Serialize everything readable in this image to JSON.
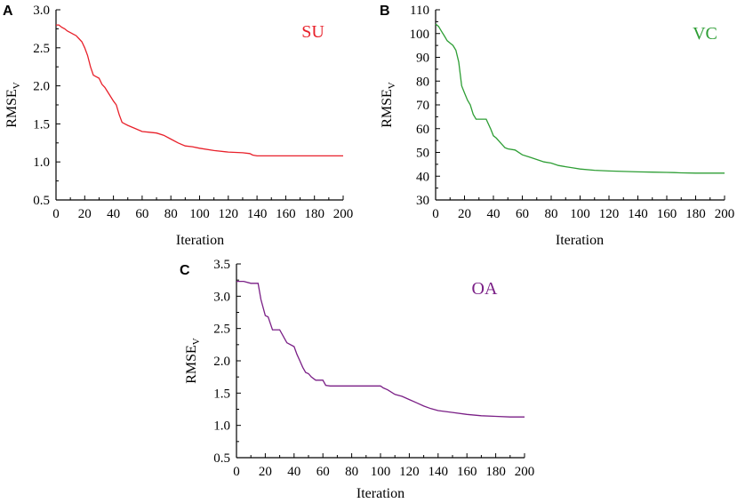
{
  "chart_data": [
    {
      "type": "line",
      "panel": "A",
      "series_label": "SU",
      "color": "#e8202a",
      "xlabel": "Iteration",
      "ylabel_main": "RMSE",
      "ylabel_sub": "V",
      "xlim": [
        0,
        200
      ],
      "ylim": [
        0.5,
        3.0
      ],
      "xticks": [
        0,
        20,
        40,
        60,
        80,
        100,
        120,
        140,
        160,
        180,
        200
      ],
      "yticks": [
        0.5,
        1.0,
        1.5,
        2.0,
        2.5,
        3.0
      ],
      "ytick_labels": [
        "0.5",
        "1.0",
        "1.5",
        "2.0",
        "2.5",
        "3.0"
      ],
      "x": [
        0,
        2,
        4,
        6,
        8,
        10,
        12,
        14,
        16,
        18,
        20,
        22,
        24,
        26,
        28,
        30,
        32,
        34,
        36,
        38,
        40,
        42,
        44,
        46,
        48,
        50,
        55,
        60,
        65,
        70,
        75,
        80,
        85,
        90,
        95,
        100,
        110,
        120,
        130,
        135,
        137,
        140,
        160,
        180,
        200
      ],
      "y": [
        2.8,
        2.8,
        2.77,
        2.75,
        2.72,
        2.7,
        2.68,
        2.66,
        2.62,
        2.58,
        2.5,
        2.4,
        2.25,
        2.14,
        2.12,
        2.1,
        2.02,
        1.98,
        1.92,
        1.86,
        1.8,
        1.75,
        1.62,
        1.52,
        1.5,
        1.48,
        1.44,
        1.4,
        1.39,
        1.38,
        1.35,
        1.3,
        1.25,
        1.21,
        1.2,
        1.18,
        1.15,
        1.13,
        1.12,
        1.11,
        1.09,
        1.08,
        1.08,
        1.08,
        1.08
      ]
    },
    {
      "type": "line",
      "panel": "B",
      "series_label": "VC",
      "color": "#2e9e35",
      "xlabel": "Iteration",
      "ylabel_main": "RMSE",
      "ylabel_sub": "V",
      "xlim": [
        0,
        200
      ],
      "ylim": [
        30,
        110
      ],
      "xticks": [
        0,
        20,
        40,
        60,
        80,
        100,
        120,
        140,
        160,
        180,
        200
      ],
      "yticks": [
        30,
        40,
        50,
        60,
        70,
        80,
        90,
        100,
        110
      ],
      "ytick_labels": [
        "30",
        "40",
        "50",
        "60",
        "70",
        "80",
        "90",
        "100",
        "110"
      ],
      "x": [
        0,
        2,
        4,
        6,
        8,
        10,
        12,
        14,
        16,
        18,
        20,
        22,
        24,
        26,
        28,
        30,
        35,
        38,
        40,
        42,
        45,
        48,
        50,
        55,
        60,
        65,
        70,
        75,
        80,
        85,
        90,
        95,
        100,
        110,
        120,
        130,
        140,
        150,
        160,
        165,
        170,
        180,
        190,
        200
      ],
      "y": [
        104,
        103,
        101,
        99,
        97,
        96,
        95,
        93,
        88,
        78,
        75,
        72,
        70,
        66,
        64,
        64,
        64,
        60,
        57,
        56,
        54,
        52,
        51.5,
        51,
        49,
        48,
        47,
        46,
        45.5,
        44.5,
        44,
        43.5,
        43,
        42.5,
        42.2,
        42,
        41.8,
        41.7,
        41.6,
        41.5,
        41.4,
        41.3,
        41.3,
        41.3
      ]
    },
    {
      "type": "line",
      "panel": "C",
      "series_label": "OA",
      "color": "#7a1f86",
      "xlabel": "Iteration",
      "ylabel_main": "RMSE",
      "ylabel_sub": "V",
      "xlim": [
        0,
        200
      ],
      "ylim": [
        0.5,
        3.5
      ],
      "xticks": [
        0,
        20,
        40,
        60,
        80,
        100,
        120,
        140,
        160,
        180,
        200
      ],
      "yticks": [
        0.5,
        1.0,
        1.5,
        2.0,
        2.5,
        3.0,
        3.5
      ],
      "ytick_labels": [
        "0.5",
        "1.0",
        "1.5",
        "2.0",
        "2.5",
        "3.0",
        "3.5"
      ],
      "x": [
        0,
        5,
        10,
        15,
        17,
        20,
        22,
        25,
        30,
        35,
        40,
        42,
        44,
        46,
        48,
        50,
        52,
        55,
        58,
        60,
        62,
        65,
        70,
        80,
        90,
        100,
        102,
        105,
        110,
        115,
        120,
        125,
        130,
        135,
        140,
        150,
        160,
        170,
        180,
        190,
        200
      ],
      "y": [
        3.23,
        3.23,
        3.2,
        3.2,
        2.95,
        2.7,
        2.68,
        2.48,
        2.48,
        2.28,
        2.22,
        2.1,
        2.0,
        1.9,
        1.82,
        1.8,
        1.75,
        1.7,
        1.7,
        1.7,
        1.62,
        1.61,
        1.61,
        1.61,
        1.61,
        1.61,
        1.58,
        1.55,
        1.48,
        1.45,
        1.4,
        1.35,
        1.3,
        1.26,
        1.23,
        1.2,
        1.17,
        1.15,
        1.14,
        1.13,
        1.13
      ]
    }
  ]
}
